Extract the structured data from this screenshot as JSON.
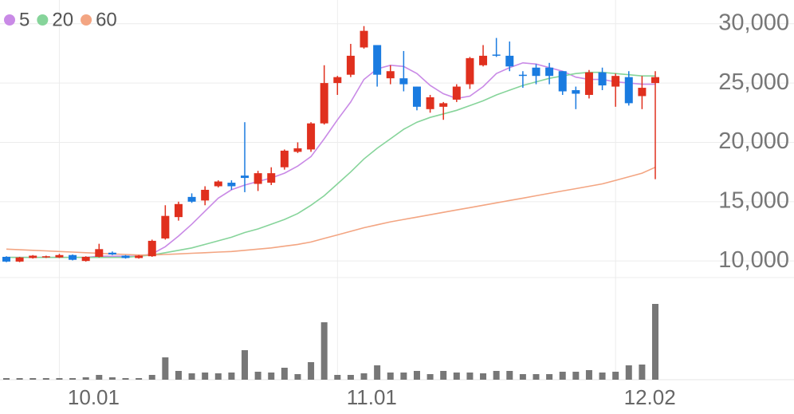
{
  "chart_data": {
    "type": "candlestick",
    "categories": [
      null,
      null,
      null,
      null,
      "10.01",
      null,
      null,
      null,
      null,
      null,
      null,
      null,
      null,
      null,
      null,
      null,
      null,
      null,
      null,
      null,
      null,
      null,
      null,
      null,
      null,
      "11.01",
      null,
      null,
      null,
      null,
      null,
      null,
      null,
      null,
      null,
      null,
      null,
      null,
      null,
      null,
      null,
      null,
      null,
      null,
      null,
      null,
      "12.02",
      null,
      null,
      null
    ],
    "open": [
      10350,
      9950,
      10250,
      10300,
      10300,
      10500,
      10000,
      10350,
      10700,
      10450,
      10250,
      10400,
      11900,
      13700,
      15400,
      15100,
      16300,
      16600,
      17200,
      16500,
      16600,
      17900,
      19200,
      19400,
      21600,
      25000,
      25700,
      28000,
      28200,
      25400,
      25400,
      24700,
      22800,
      23000,
      23600,
      24900,
      26500,
      27400,
      27300,
      25700,
      26300,
      26300,
      26000,
      24400,
      24000,
      25900,
      24700,
      25500,
      23900,
      25000
    ],
    "high": [
      10400,
      10350,
      10500,
      10450,
      10600,
      10550,
      10400,
      11450,
      10800,
      10500,
      10500,
      11800,
      14700,
      15000,
      15700,
      16300,
      16800,
      16800,
      21700,
      17600,
      17900,
      19400,
      20000,
      21700,
      26500,
      25600,
      28300,
      29800,
      28200,
      26500,
      27700,
      24700,
      24000,
      23400,
      24900,
      27200,
      28200,
      28800,
      28500,
      26000,
      26600,
      26700,
      26000,
      24700,
      26100,
      26300,
      25800,
      26000,
      25600,
      26000
    ],
    "low": [
      9900,
      9900,
      10200,
      10250,
      10250,
      10050,
      9950,
      10300,
      10500,
      10200,
      10200,
      10350,
      11800,
      13400,
      14900,
      14700,
      16200,
      16000,
      15800,
      15900,
      16400,
      17700,
      19100,
      19200,
      21500,
      24000,
      25500,
      27900,
      24700,
      24900,
      24300,
      22700,
      22500,
      21900,
      23400,
      24500,
      26400,
      27200,
      26000,
      24600,
      24900,
      24900,
      24000,
      22800,
      23700,
      24400,
      23000,
      23100,
      22800,
      16900
    ],
    "close": [
      9950,
      10300,
      10450,
      10400,
      10500,
      10100,
      10350,
      11000,
      10550,
      10250,
      10450,
      11700,
      13800,
      14800,
      15000,
      16000,
      16700,
      16300,
      17000,
      17400,
      17400,
      19300,
      19500,
      21600,
      25000,
      25500,
      27300,
      29400,
      25700,
      26000,
      24900,
      23000,
      23800,
      23300,
      24700,
      27100,
      27300,
      27300,
      26400,
      25600,
      25600,
      25600,
      24300,
      24100,
      25900,
      24800,
      25600,
      23300,
      24600,
      25500
    ],
    "up_color": "#e0301e",
    "down_color": "#1a7be0",
    "series": [
      {
        "name": "5",
        "color": "#c98ae6",
        "values": [
          10300,
          10300,
          10300,
          10300,
          10300,
          10300,
          10300,
          10400,
          10400,
          10400,
          10400,
          10600,
          11200,
          12100,
          13100,
          14200,
          15300,
          16000,
          16400,
          16700,
          17000,
          17400,
          18000,
          18800,
          20300,
          21900,
          23400,
          25300,
          26200,
          26500,
          26400,
          25800,
          24800,
          24100,
          23700,
          23900,
          24700,
          25800,
          26300,
          26700,
          26600,
          26300,
          26000,
          25500,
          25300,
          25300,
          25100,
          25000,
          24900,
          24900
        ]
      },
      {
        "name": "20",
        "color": "#86d49a",
        "values": [
          10300,
          10300,
          10300,
          10300,
          10300,
          10300,
          10300,
          10300,
          10300,
          10300,
          10400,
          10500,
          10700,
          10900,
          11100,
          11400,
          11700,
          12000,
          12400,
          12700,
          13100,
          13500,
          14000,
          14700,
          15500,
          16500,
          17500,
          18600,
          19500,
          20300,
          21100,
          21700,
          22100,
          22400,
          22700,
          23100,
          23500,
          24000,
          24400,
          24800,
          25100,
          25400,
          25600,
          25800,
          25900,
          25900,
          25800,
          25700,
          25600,
          25600
        ]
      },
      {
        "name": "60",
        "color": "#f3a582",
        "values": [
          11000,
          10950,
          10900,
          10850,
          10800,
          10750,
          10700,
          10650,
          10600,
          10550,
          10500,
          10500,
          10550,
          10600,
          10650,
          10700,
          10750,
          10800,
          10900,
          11000,
          11100,
          11250,
          11400,
          11600,
          11900,
          12200,
          12500,
          12800,
          13050,
          13300,
          13500,
          13700,
          13900,
          14100,
          14300,
          14500,
          14700,
          14900,
          15100,
          15300,
          15500,
          15700,
          15900,
          16100,
          16300,
          16500,
          16800,
          17100,
          17400,
          17900
        ]
      }
    ],
    "ylim": [
      8600,
      32000
    ],
    "yticks": [
      {
        "value": 30000,
        "label": "30,000"
      },
      {
        "value": 25000,
        "label": "25,000"
      },
      {
        "value": 20000,
        "label": "20,000"
      },
      {
        "value": 15000,
        "label": "15,000"
      },
      {
        "value": 10000,
        "label": "10,000"
      }
    ],
    "volume": {
      "color": "#777777",
      "ylim": [
        0,
        100
      ],
      "values": [
        2,
        2,
        2,
        2,
        2,
        2,
        3,
        6,
        3,
        2,
        2,
        6,
        28,
        11,
        8,
        9,
        8,
        9,
        37,
        10,
        9,
        15,
        7,
        22,
        72,
        6,
        6,
        8,
        18,
        9,
        9,
        11,
        7,
        11,
        9,
        9,
        8,
        11,
        11,
        7,
        7,
        7,
        10,
        10,
        12,
        9,
        10,
        18,
        19,
        95
      ]
    },
    "grid": true,
    "legend": "top-left"
  }
}
